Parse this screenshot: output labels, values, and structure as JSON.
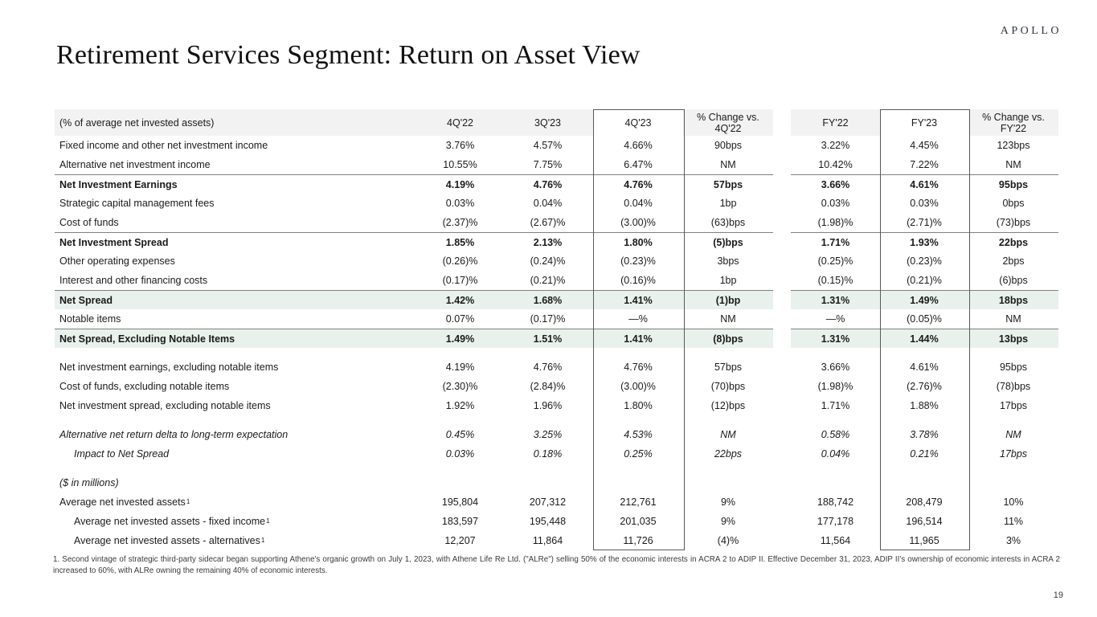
{
  "logo": "APOLLO",
  "title": "Retirement Services Segment: Return on Asset View",
  "page_number": "19",
  "footnote": "1. Second vintage of strategic third-party sidecar began supporting Athene's organic growth on July 1, 2023, with Athene Life Re Ltd. (\"ALRe\") selling 50% of the economic interests in ACRA 2 to ADIP II. Effective December 31, 2023, ADIP II's ownership of economic interests in ACRA 2 increased to 60%, with ALRe owning the remaining 40% of economic interests.",
  "colors": {
    "header_bg": "#f2f2f2",
    "highlight_bg": "#e9f1ec",
    "rule_line": "#7f7f7f",
    "box_border": "#595959"
  },
  "table": {
    "header": [
      "(% of average net invested assets)",
      "4Q'22",
      "3Q'23",
      "4Q'23",
      "% Change vs. 4Q'22",
      "FY'22",
      "FY'23",
      "% Change vs. FY'22"
    ],
    "boxed_columns": [
      "4Q'23",
      "FY'23"
    ],
    "rows": [
      {
        "label": "Fixed income and other net investment income",
        "values": [
          "3.76%",
          "4.57%",
          "4.66%",
          "90bps",
          "3.22%",
          "4.45%",
          "123bps"
        ]
      },
      {
        "label": "Alternative net investment income",
        "values": [
          "10.55%",
          "7.75%",
          "6.47%",
          "NM",
          "10.42%",
          "7.22%",
          "NM"
        ]
      },
      {
        "label": "Net Investment Earnings",
        "bold": true,
        "topline": true,
        "values": [
          "4.19%",
          "4.76%",
          "4.76%",
          "57bps",
          "3.66%",
          "4.61%",
          "95bps"
        ]
      },
      {
        "label": "Strategic capital management fees",
        "values": [
          "0.03%",
          "0.04%",
          "0.04%",
          "1bp",
          "0.03%",
          "0.03%",
          "0bps"
        ]
      },
      {
        "label": "Cost of funds",
        "values": [
          "(2.37)%",
          "(2.67)%",
          "(3.00)%",
          "(63)bps",
          "(1.98)%",
          "(2.71)%",
          "(73)bps"
        ]
      },
      {
        "label": "Net Investment Spread",
        "bold": true,
        "topline": true,
        "values": [
          "1.85%",
          "2.13%",
          "1.80%",
          "(5)bps",
          "1.71%",
          "1.93%",
          "22bps"
        ]
      },
      {
        "label": "Other operating expenses",
        "values": [
          "(0.26)%",
          "(0.24)%",
          "(0.23)%",
          "3bps",
          "(0.25)%",
          "(0.23)%",
          "2bps"
        ]
      },
      {
        "label": "Interest and other financing costs",
        "values": [
          "(0.17)%",
          "(0.21)%",
          "(0.16)%",
          "1bp",
          "(0.15)%",
          "(0.21)%",
          "(6)bps"
        ]
      },
      {
        "label": "Net Spread",
        "bold": true,
        "topline": true,
        "highlight": true,
        "values": [
          "1.42%",
          "1.68%",
          "1.41%",
          "(1)bp",
          "1.31%",
          "1.49%",
          "18bps"
        ]
      },
      {
        "label": "Notable items",
        "values": [
          "0.07%",
          "(0.17)%",
          "—%",
          "NM",
          "—%",
          "(0.05)%",
          "NM"
        ]
      },
      {
        "label": "Net Spread, Excluding Notable Items",
        "bold": true,
        "topline": true,
        "highlight": true,
        "values": [
          "1.49%",
          "1.51%",
          "1.41%",
          "(8)bps",
          "1.31%",
          "1.44%",
          "13bps"
        ]
      },
      {
        "spacer": true
      },
      {
        "label": "Net investment earnings, excluding notable items",
        "values": [
          "4.19%",
          "4.76%",
          "4.76%",
          "57bps",
          "3.66%",
          "4.61%",
          "95bps"
        ]
      },
      {
        "label": "Cost of funds, excluding notable items",
        "values": [
          "(2.30)%",
          "(2.84)%",
          "(3.00)%",
          "(70)bps",
          "(1.98)%",
          "(2.76)%",
          "(78)bps"
        ]
      },
      {
        "label": "Net investment spread, excluding notable items",
        "values": [
          "1.92%",
          "1.96%",
          "1.80%",
          "(12)bps",
          "1.71%",
          "1.88%",
          "17bps"
        ]
      },
      {
        "spacer": true
      },
      {
        "label": "Alternative net return delta to long-term expectation",
        "italic": true,
        "values": [
          "0.45%",
          "3.25%",
          "4.53%",
          "NM",
          "0.58%",
          "3.78%",
          "NM"
        ]
      },
      {
        "label": "Impact to Net Spread",
        "italic": true,
        "indent": true,
        "values": [
          "0.03%",
          "0.18%",
          "0.25%",
          "22bps",
          "0.04%",
          "0.21%",
          "17bps"
        ]
      },
      {
        "spacer": true
      },
      {
        "label": "($ in millions)",
        "italic": true,
        "values": [
          "",
          "",
          "",
          "",
          "",
          "",
          ""
        ]
      },
      {
        "label": "Average net invested assets",
        "sup": "1",
        "values": [
          "195,804",
          "207,312",
          "212,761",
          "9%",
          "188,742",
          "208,479",
          "10%"
        ]
      },
      {
        "label": "Average net invested assets - fixed income",
        "sup": "1",
        "indent": true,
        "values": [
          "183,597",
          "195,448",
          "201,035",
          "9%",
          "177,178",
          "196,514",
          "11%"
        ]
      },
      {
        "label": "Average net invested assets - alternatives",
        "sup": "1",
        "indent": true,
        "values": [
          "12,207",
          "11,864",
          "11,726",
          "(4)%",
          "11,564",
          "11,965",
          "3%"
        ]
      }
    ]
  }
}
